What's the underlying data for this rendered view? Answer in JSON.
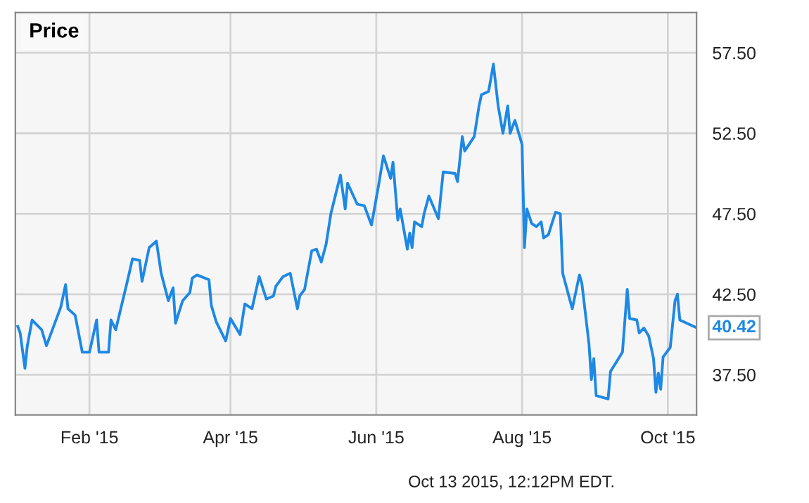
{
  "chart_data": {
    "type": "line",
    "title": "Price",
    "x": [
      "2015-01-02",
      "2015-01-03",
      "2015-01-05",
      "2015-01-06",
      "2015-01-08",
      "2015-01-12",
      "2015-01-14",
      "2015-01-20",
      "2015-01-22",
      "2015-01-23",
      "2015-01-26",
      "2015-01-29",
      "2015-02-01",
      "2015-02-04",
      "2015-02-05",
      "2015-02-09",
      "2015-02-10",
      "2015-02-12",
      "2015-02-17",
      "2015-02-19",
      "2015-02-22",
      "2015-02-23",
      "2015-02-25",
      "2015-02-26",
      "2015-03-01",
      "2015-03-03",
      "2015-03-06",
      "2015-03-08",
      "2015-03-09",
      "2015-03-12",
      "2015-03-15",
      "2015-03-16",
      "2015-03-18",
      "2015-03-23",
      "2015-03-24",
      "2015-03-26",
      "2015-03-30",
      "2015-04-01",
      "2015-04-05",
      "2015-04-07",
      "2015-04-10",
      "2015-04-13",
      "2015-04-16",
      "2015-04-19",
      "2015-04-20",
      "2015-04-23",
      "2015-04-26",
      "2015-04-29",
      "2015-04-30",
      "2015-05-02",
      "2015-05-05",
      "2015-05-07",
      "2015-05-09",
      "2015-05-11",
      "2015-05-13",
      "2015-05-17",
      "2015-05-19",
      "2015-05-20",
      "2015-05-24",
      "2015-05-27",
      "2015-05-30",
      "2015-06-02",
      "2015-06-04",
      "2015-06-07",
      "2015-06-08",
      "2015-06-10",
      "2015-06-11",
      "2015-06-14",
      "2015-06-15",
      "2015-06-16",
      "2015-06-17",
      "2015-06-20",
      "2015-06-21",
      "2015-06-23",
      "2015-06-27",
      "2015-06-29",
      "2015-07-04",
      "2015-07-05",
      "2015-07-07",
      "2015-07-08",
      "2015-07-12",
      "2015-07-14",
      "2015-07-15",
      "2015-07-18",
      "2015-07-20",
      "2015-07-22",
      "2015-07-24",
      "2015-07-26",
      "2015-07-27",
      "2015-07-29",
      "2015-08-01",
      "2015-08-02",
      "2015-08-03",
      "2015-08-05",
      "2015-08-07",
      "2015-08-09",
      "2015-08-10",
      "2015-08-12",
      "2015-08-15",
      "2015-08-17",
      "2015-08-18",
      "2015-08-22",
      "2015-08-25",
      "2015-08-26",
      "2015-08-29",
      "2015-08-30",
      "2015-08-31",
      "2015-09-01",
      "2015-09-06",
      "2015-09-07",
      "2015-09-12",
      "2015-09-14",
      "2015-09-15",
      "2015-09-18",
      "2015-09-19",
      "2015-09-21",
      "2015-09-23",
      "2015-09-25",
      "2015-09-26",
      "2015-09-27",
      "2015-09-28",
      "2015-09-29",
      "2015-10-02",
      "2015-10-04",
      "2015-10-05",
      "2015-10-06",
      "2015-10-13"
    ],
    "series": [
      {
        "color": "#1e88e5",
        "values": [
          40.5,
          40.1,
          37.9,
          39.3,
          40.9,
          40.3,
          39.3,
          41.7,
          43.1,
          41.6,
          41.2,
          38.9,
          38.9,
          40.9,
          38.9,
          38.9,
          40.9,
          40.3,
          43.4,
          44.7,
          44.6,
          43.3,
          44.7,
          45.4,
          45.8,
          43.8,
          42.1,
          42.9,
          40.7,
          42.1,
          42.6,
          43.5,
          43.7,
          43.4,
          41.8,
          40.8,
          39.6,
          41.0,
          40.0,
          41.9,
          41.6,
          43.6,
          42.2,
          42.4,
          43.0,
          43.6,
          43.8,
          41.6,
          42.4,
          42.8,
          45.2,
          45.3,
          44.5,
          45.6,
          47.5,
          49.9,
          47.8,
          49.4,
          48.1,
          48.0,
          46.8,
          49.3,
          51.1,
          49.7,
          50.7,
          47.1,
          47.8,
          45.3,
          46.3,
          45.4,
          47.0,
          46.7,
          47.5,
          48.6,
          47.2,
          50.1,
          50.0,
          49.5,
          52.3,
          51.4,
          52.3,
          54.2,
          54.9,
          55.1,
          56.8,
          54.2,
          52.5,
          54.2,
          52.5,
          53.3,
          51.8,
          45.4,
          47.8,
          46.9,
          46.7,
          47.0,
          46.0,
          46.2,
          47.6,
          47.5,
          43.8,
          41.6,
          43.7,
          43.2,
          39.4,
          37.2,
          38.5,
          36.2,
          36.0,
          37.7,
          38.9,
          42.8,
          41.0,
          40.9,
          40.1,
          40.4,
          39.9,
          38.5,
          36.4,
          37.6,
          36.6,
          38.6,
          39.2,
          42.1,
          42.5,
          40.9,
          40.42
        ]
      }
    ],
    "xlim": [
      "2015-01-01",
      "2015-10-13"
    ],
    "xticks": [
      {
        "value": "2015-02-01",
        "label": "Feb '15"
      },
      {
        "value": "2015-04-01",
        "label": "Apr '15"
      },
      {
        "value": "2015-06-01",
        "label": "Jun '15"
      },
      {
        "value": "2015-08-01",
        "label": "Aug '15"
      },
      {
        "value": "2015-10-01",
        "label": "Oct '15"
      }
    ],
    "ylim": [
      35,
      60
    ],
    "yticks": [
      {
        "value": 37.5,
        "label": "37.50"
      },
      {
        "value": 42.5,
        "label": "42.50"
      },
      {
        "value": 47.5,
        "label": "47.50"
      },
      {
        "value": 52.5,
        "label": "52.50"
      },
      {
        "value": 57.5,
        "label": "57.50"
      }
    ],
    "grid": true,
    "marker": "none",
    "line_style": "solid",
    "annotations": [
      {
        "text": "40.42",
        "x": "2015-10-13",
        "y": 40.42
      },
      "Oct 13 2015, 12:12PM EDT."
    ]
  }
}
